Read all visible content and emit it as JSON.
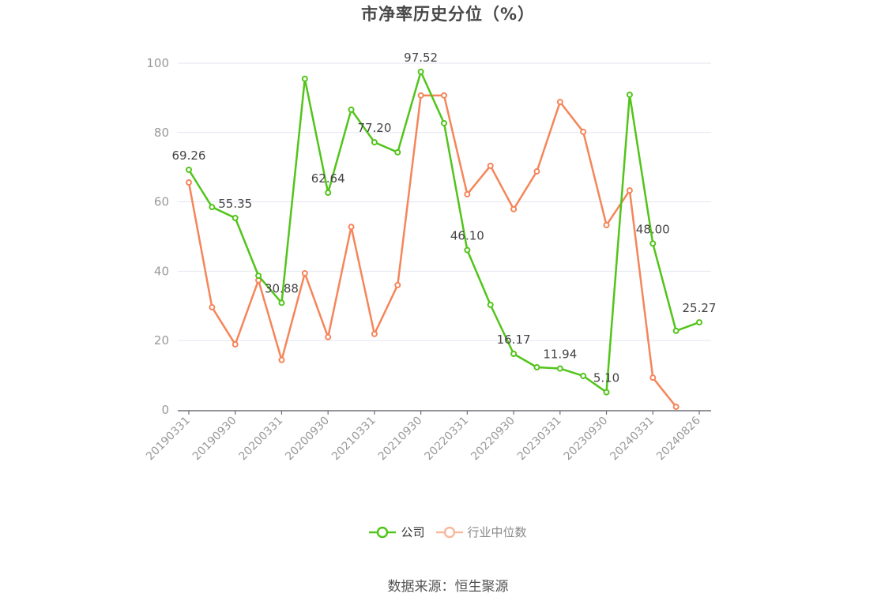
{
  "title": "市净率历史分位（%）",
  "legend": {
    "company_label": "公司",
    "industry_label": "行业中位数"
  },
  "source": "数据来源：恒生聚源",
  "colors": {
    "company": "#52c41a",
    "industry": "#f5855a",
    "industry_legend": "#f8b9a0",
    "grid": "#e3e6f0",
    "axis": "#6e7079",
    "tick_label": "#999999",
    "data_label": "#444444"
  },
  "chart_data": {
    "type": "line",
    "title": "市净率历史分位（%）",
    "xlabel": "",
    "ylabel": "",
    "ylim": [
      0,
      100
    ],
    "yticks": [
      0,
      20,
      40,
      60,
      80,
      100
    ],
    "grid": true,
    "legend_position": "bottom",
    "x_tick_labels": [
      "20190331",
      "20190930",
      "20200331",
      "20200930",
      "20210331",
      "20210930",
      "20220331",
      "20220930",
      "20230331",
      "20230930",
      "20240331",
      "20240826"
    ],
    "x": [
      "20190331",
      "20190630",
      "20190930",
      "20191231",
      "20200331",
      "20200630",
      "20200930",
      "20201231",
      "20210331",
      "20210630",
      "20210930",
      "20211231",
      "20220331",
      "20220630",
      "20220930",
      "20221231",
      "20230331",
      "20230630",
      "20230930",
      "20231231",
      "20240331",
      "20240630",
      "20240826"
    ],
    "series": [
      {
        "name": "公司",
        "values": [
          69.26,
          58.5,
          55.35,
          38.7,
          30.88,
          95.5,
          62.64,
          86.6,
          77.2,
          74.3,
          97.52,
          82.7,
          46.1,
          30.3,
          16.17,
          12.3,
          11.94,
          9.8,
          5.1,
          90.9,
          48.0,
          22.8,
          25.27
        ],
        "labels": {
          "0": "69.26",
          "2": "55.35",
          "4": "30.88",
          "6": "62.64",
          "8": "77.20",
          "10": "97.52",
          "12": "46.10",
          "14": "16.17",
          "16": "11.94",
          "18": "5.10",
          "20": "48.00",
          "22": "25.27"
        }
      },
      {
        "name": "行业中位数",
        "values": [
          65.6,
          29.6,
          18.9,
          37.4,
          14.4,
          39.4,
          21.0,
          52.8,
          21.9,
          36.0,
          90.7,
          90.7,
          62.2,
          70.4,
          57.9,
          68.8,
          88.8,
          80.2,
          53.3,
          63.3,
          9.3,
          0.9,
          null
        ]
      }
    ]
  }
}
